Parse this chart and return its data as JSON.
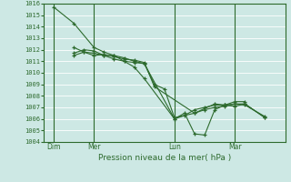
{
  "title": "Pression niveau de la mer( hPa )",
  "bg_color": "#cde8e4",
  "grid_color": "#ffffff",
  "line_color": "#2d6a2d",
  "ylim": [
    1004,
    1016
  ],
  "yticks": [
    1004,
    1005,
    1006,
    1007,
    1008,
    1009,
    1010,
    1011,
    1012,
    1013,
    1014,
    1015,
    1016
  ],
  "xtick_labels": [
    "Dim",
    "Mer",
    "Lun",
    "Mar"
  ],
  "xtick_positions": [
    0.5,
    2.5,
    6.5,
    9.5
  ],
  "vlines_x": [
    0.5,
    2.5,
    6.5,
    9.5
  ],
  "xlim": [
    0,
    12
  ],
  "series": [
    {
      "x": [
        0.5,
        1.5,
        2.5,
        3.0,
        3.5,
        4.0,
        4.5,
        5.0,
        6.5,
        7.0,
        7.5,
        8.0,
        8.5,
        9.0,
        9.5,
        10.0,
        11.0
      ],
      "y": [
        1015.7,
        1014.3,
        1012.2,
        1011.8,
        1011.5,
        1011.0,
        1010.5,
        1009.5,
        1006.0,
        1006.5,
        1004.7,
        1004.6,
        1006.8,
        1007.2,
        1007.1,
        1007.3,
        1006.1
      ]
    },
    {
      "x": [
        1.5,
        2.0,
        2.5,
        3.0,
        3.5,
        4.0,
        4.5,
        5.0,
        5.5,
        6.0,
        6.5,
        7.5,
        8.0,
        8.5,
        9.0,
        9.5,
        10.0,
        11.0
      ],
      "y": [
        1011.7,
        1012.0,
        1011.9,
        1011.5,
        1011.5,
        1011.3,
        1011.0,
        1010.8,
        1009.0,
        1008.6,
        1006.1,
        1006.5,
        1006.8,
        1007.0,
        1007.1,
        1007.3,
        1007.3,
        1006.1
      ]
    },
    {
      "x": [
        1.5,
        2.0,
        2.5,
        3.0,
        3.5,
        4.0,
        4.5,
        5.0,
        5.5,
        7.5,
        8.5,
        9.0,
        9.5,
        10.0
      ],
      "y": [
        1011.5,
        1011.8,
        1011.5,
        1011.6,
        1011.4,
        1011.2,
        1011.1,
        1010.9,
        1008.8,
        1006.5,
        1007.3,
        1007.2,
        1007.5,
        1007.5
      ]
    },
    {
      "x": [
        1.5,
        2.0,
        2.5,
        3.0,
        3.5,
        4.0,
        4.5,
        5.0,
        6.5,
        7.0,
        7.5,
        8.0,
        8.5,
        9.0,
        9.5,
        10.0,
        11.0
      ],
      "y": [
        1012.2,
        1011.8,
        1011.7,
        1011.5,
        1011.2,
        1011.0,
        1010.9,
        1010.8,
        1006.0,
        1006.3,
        1006.8,
        1007.0,
        1007.2,
        1007.2,
        1007.3,
        1007.2,
        1006.2
      ]
    }
  ]
}
